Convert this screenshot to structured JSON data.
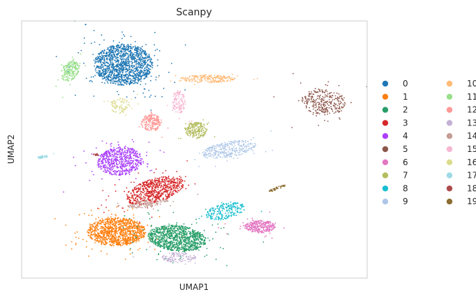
{
  "chart_data": {
    "type": "scatter",
    "title": "Scanpy",
    "xlabel": "UMAP1",
    "ylabel": "UMAP2",
    "grid": false,
    "ticks": false,
    "legend_position": "right",
    "legend_columns": 2,
    "xlim": [
      0,
      100
    ],
    "ylim": [
      0,
      100
    ],
    "clusters": [
      {
        "name": "0",
        "color": "#1f77b4",
        "n": 1400,
        "cx": 29.5,
        "cy": 83.0,
        "rx": 8.5,
        "ry": 8.0,
        "rot": 0
      },
      {
        "name": "1",
        "color": "#ff7f0e",
        "n": 1100,
        "cx": 27.5,
        "cy": 18.0,
        "rx": 8.5,
        "ry": 5.5,
        "rot": 0
      },
      {
        "name": "2",
        "color": "#279e68",
        "n": 1000,
        "cx": 45.0,
        "cy": 15.5,
        "rx": 8.5,
        "ry": 5.0,
        "rot": -10
      },
      {
        "name": "3",
        "color": "#d62728",
        "n": 700,
        "cx": 38.5,
        "cy": 34.0,
        "rx": 9.0,
        "ry": 4.5,
        "rot": 25
      },
      {
        "name": "4",
        "color": "#aa40fc",
        "n": 650,
        "cx": 28.5,
        "cy": 45.5,
        "rx": 6.5,
        "ry": 5.5,
        "rot": 15
      },
      {
        "name": "5",
        "color": "#8c564b",
        "n": 300,
        "cx": 87.5,
        "cy": 68.5,
        "rx": 6.5,
        "ry": 5.0,
        "rot": -10
      },
      {
        "name": "6",
        "color": "#e377c2",
        "n": 300,
        "cx": 69.0,
        "cy": 20.0,
        "rx": 4.5,
        "ry": 2.5,
        "rot": 0
      },
      {
        "name": "7",
        "color": "#b5bd61",
        "n": 220,
        "cx": 50.5,
        "cy": 57.5,
        "rx": 3.2,
        "ry": 3.2,
        "rot": 0
      },
      {
        "name": "8",
        "color": "#17becf",
        "n": 220,
        "cx": 59.0,
        "cy": 26.0,
        "rx": 6.0,
        "ry": 3.0,
        "rot": 20
      },
      {
        "name": "9",
        "color": "#aec7e8",
        "n": 320,
        "cx": 60.0,
        "cy": 50.0,
        "rx": 8.0,
        "ry": 3.0,
        "rot": 15
      },
      {
        "name": "10",
        "color": "#ffbb78",
        "n": 220,
        "cx": 54.0,
        "cy": 77.5,
        "rx": 8.0,
        "ry": 1.5,
        "rot": 0
      },
      {
        "name": "11",
        "color": "#98df8a",
        "n": 200,
        "cx": 14.0,
        "cy": 80.5,
        "rx": 2.5,
        "ry": 4.0,
        "rot": -20
      },
      {
        "name": "12",
        "color": "#ff9896",
        "n": 200,
        "cx": 37.5,
        "cy": 60.5,
        "rx": 3.0,
        "ry": 3.2,
        "rot": 0
      },
      {
        "name": "13",
        "color": "#c5b0d5",
        "n": 120,
        "cx": 45.5,
        "cy": 8.0,
        "rx": 5.0,
        "ry": 2.0,
        "rot": 0
      },
      {
        "name": "14",
        "color": "#c49c94",
        "n": 130,
        "cx": 36.5,
        "cy": 29.0,
        "rx": 6.0,
        "ry": 1.5,
        "rot": 10
      },
      {
        "name": "15",
        "color": "#f7b6d2",
        "n": 120,
        "cx": 45.5,
        "cy": 68.5,
        "rx": 2.0,
        "ry": 4.5,
        "rot": 0
      },
      {
        "name": "16",
        "color": "#dbdb8d",
        "n": 90,
        "cx": 28.5,
        "cy": 67.0,
        "rx": 2.8,
        "ry": 3.0,
        "rot": -25
      },
      {
        "name": "17",
        "color": "#9edae5",
        "n": 40,
        "cx": 6.0,
        "cy": 47.0,
        "rx": 1.6,
        "ry": 0.6,
        "rot": 15
      },
      {
        "name": "18",
        "color": "#ad494a",
        "n": 20,
        "cx": 21.5,
        "cy": 48.0,
        "rx": 0.8,
        "ry": 0.4,
        "rot": 0
      },
      {
        "name": "19",
        "color": "#8c6d31",
        "n": 40,
        "cx": 74.0,
        "cy": 35.0,
        "rx": 3.0,
        "ry": 0.6,
        "rot": 28
      }
    ]
  }
}
